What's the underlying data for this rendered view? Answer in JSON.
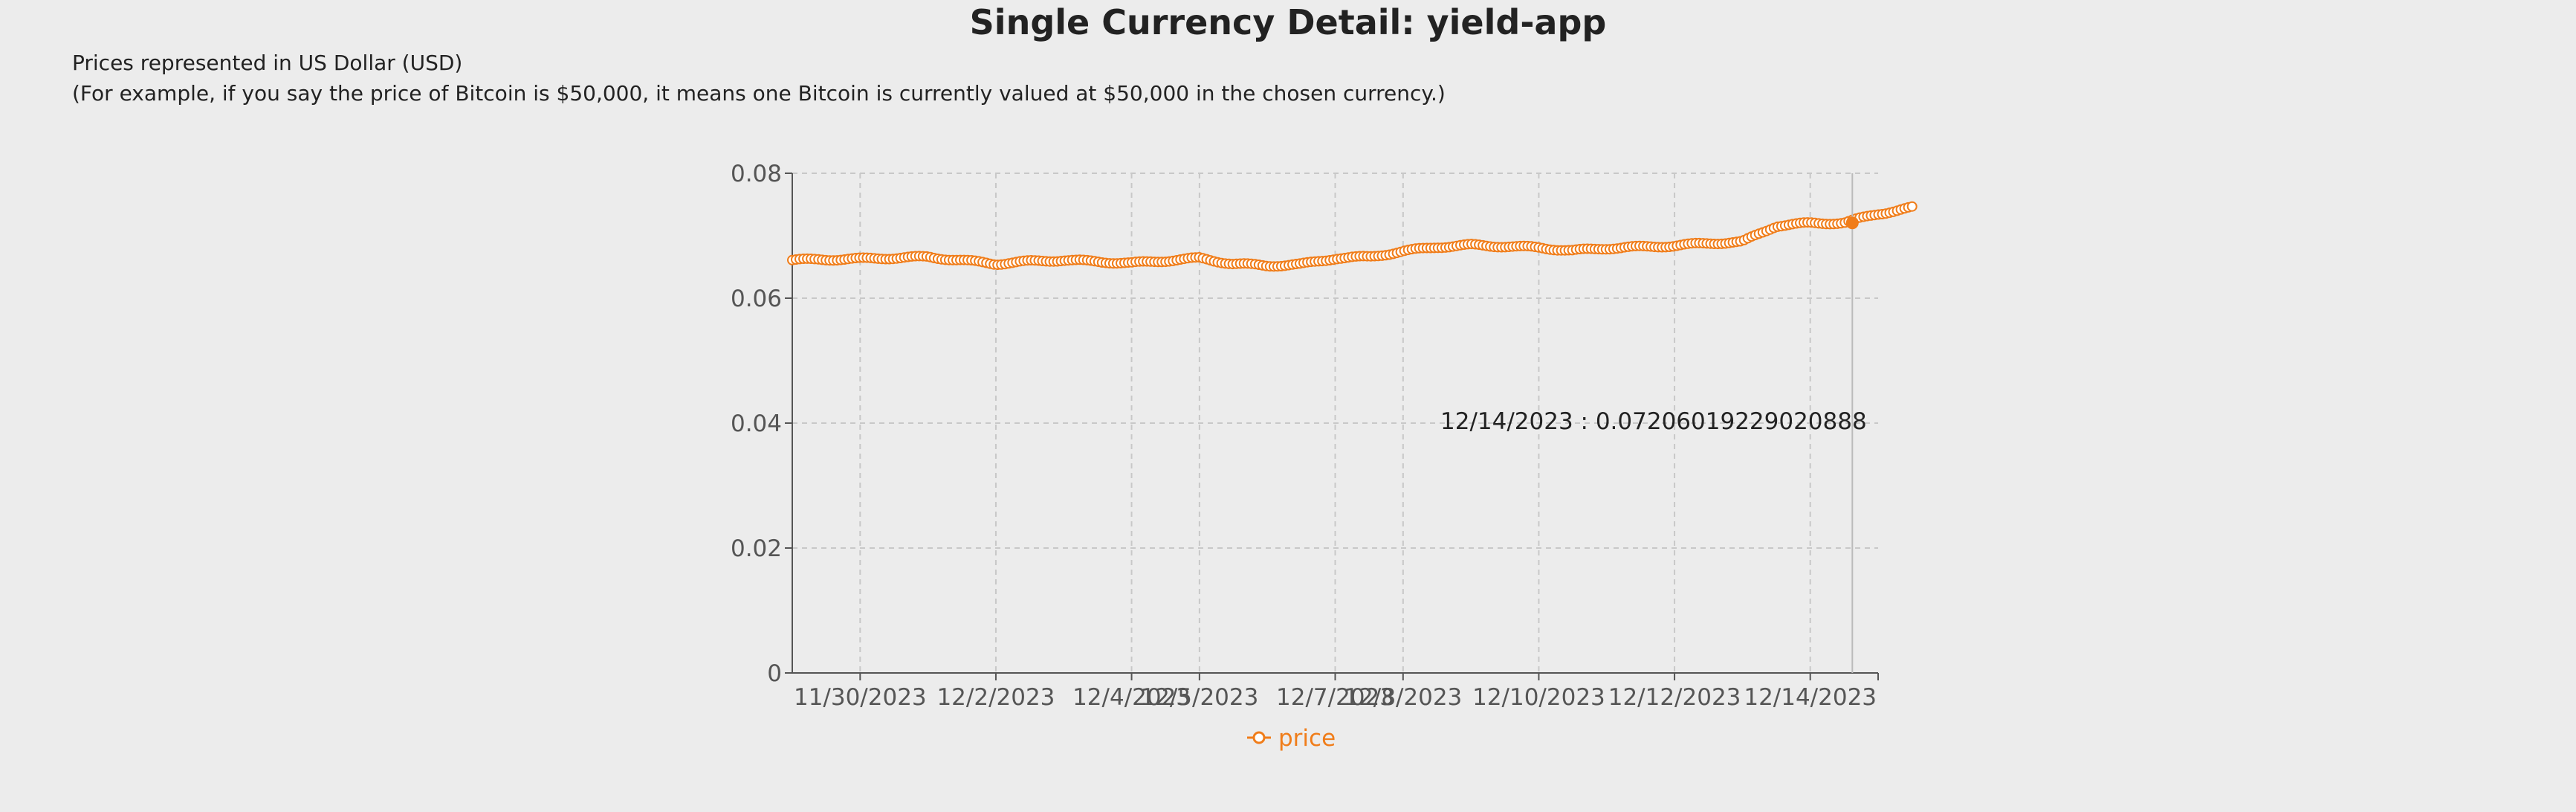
{
  "page": {
    "title": "Single Currency Detail: yield-app",
    "note_line1": "Prices represented in US Dollar (USD)",
    "note_line2": "(For example, if you say the price of Bitcoin is $50,000, it means one Bitcoin is currently valued at $50,000 in the chosen currency.)"
  },
  "chart_data": {
    "type": "line",
    "x_label_type": "date",
    "xlabel": "",
    "ylabel": "",
    "ylim": [
      0,
      0.08
    ],
    "xlim": [
      "11/29/2023",
      "12/15/2023"
    ],
    "y_ticks": [
      "0",
      "0.02",
      "0.04",
      "0.06",
      "0.08"
    ],
    "x_ticks": [
      "11/30/2023",
      "12/2/2023",
      "12/4/2023",
      "12/5/2023",
      "12/7/2023",
      "12/8/2023",
      "12/10/2023",
      "12/12/2023",
      "12/14/2023"
    ],
    "grid": true,
    "legend": "bottom-center",
    "color": "#f07d1a",
    "series": [
      {
        "name": "price",
        "points": [
          [
            "11/29/2023",
            0.0661
          ],
          [
            "11/30/2023",
            0.0663
          ],
          [
            "12/1/2023",
            0.0666
          ],
          [
            "12/2/2023",
            0.0655
          ],
          [
            "12/2/2023",
            0.0659
          ],
          [
            "12/3/2023",
            0.0661
          ],
          [
            "12/4/2023",
            0.0656
          ],
          [
            "12/4/2023",
            0.066
          ],
          [
            "12/5/2023",
            0.0664
          ],
          [
            "12/5/2023",
            0.0655
          ],
          [
            "12/6/2023",
            0.0652
          ],
          [
            "12/6/2023",
            0.0654
          ],
          [
            "12/7/2023",
            0.0664
          ],
          [
            "12/7/2023",
            0.0666
          ],
          [
            "12/8/2023",
            0.0675
          ],
          [
            "12/8/2023",
            0.0682
          ],
          [
            "12/9/2023",
            0.0685
          ],
          [
            "12/10/2023",
            0.0681
          ],
          [
            "12/10/2023",
            0.0676
          ],
          [
            "12/11/2023",
            0.068
          ],
          [
            "12/12/2023",
            0.0684
          ],
          [
            "12/12/2023",
            0.0688
          ],
          [
            "12/13/2023",
            0.069
          ],
          [
            "12/13/2023",
            0.0716
          ],
          [
            "12/14/2023",
            0.072
          ],
          [
            "12/14/2023",
            0.07206019229020888
          ],
          [
            "12/15/2023",
            0.0735
          ],
          [
            "12/15/2023",
            0.0745
          ]
        ]
      }
    ],
    "hover": {
      "date": "12/14/2023",
      "label": "12/14/2023 : 0.07206019229020888"
    }
  }
}
